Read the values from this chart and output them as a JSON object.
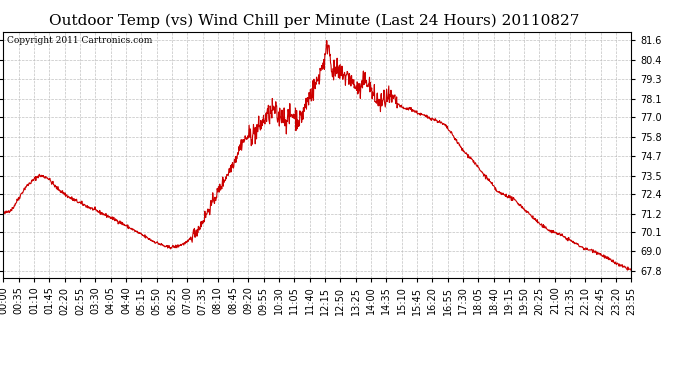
{
  "title": "Outdoor Temp (vs) Wind Chill per Minute (Last 24 Hours) 20110827",
  "copyright": "Copyright 2011 Cartronics.com",
  "line_color": "#cc0000",
  "background_color": "#ffffff",
  "plot_bg_color": "#ffffff",
  "grid_color": "#bbbbbb",
  "ylim": [
    67.4,
    82.1
  ],
  "yticks": [
    67.8,
    69.0,
    70.1,
    71.2,
    72.4,
    73.5,
    74.7,
    75.8,
    77.0,
    78.1,
    79.3,
    80.4,
    81.6
  ],
  "xtick_labels": [
    "00:00",
    "00:35",
    "01:10",
    "01:45",
    "02:20",
    "02:55",
    "03:30",
    "04:05",
    "04:40",
    "05:15",
    "05:50",
    "06:25",
    "07:00",
    "07:35",
    "08:10",
    "08:45",
    "09:20",
    "09:55",
    "10:30",
    "11:05",
    "11:40",
    "12:15",
    "12:50",
    "13:25",
    "14:00",
    "14:35",
    "15:10",
    "15:45",
    "16:20",
    "16:55",
    "17:30",
    "18:05",
    "18:40",
    "19:15",
    "19:50",
    "20:25",
    "21:00",
    "21:35",
    "22:10",
    "22:45",
    "23:20",
    "23:55"
  ],
  "title_fontsize": 11,
  "copyright_fontsize": 6.5,
  "tick_fontsize": 7,
  "line_width": 0.8
}
